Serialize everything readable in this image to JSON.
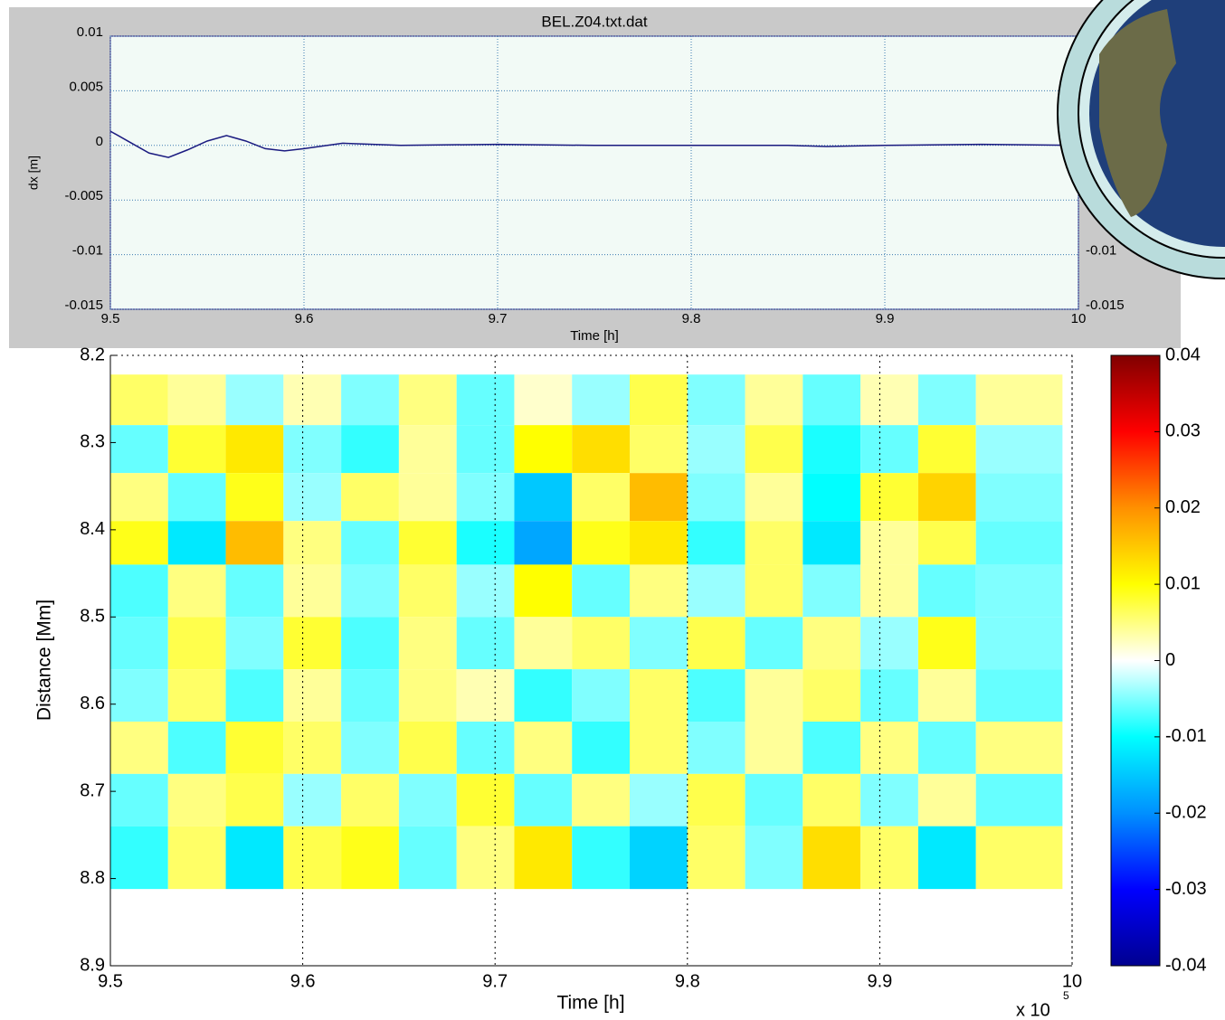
{
  "chart_data": [
    {
      "type": "line",
      "title": "BEL.Z04.txt.dat",
      "xlabel": "Time [h]",
      "ylabel": "dx [m]",
      "x": [
        9.5,
        9.51,
        9.52,
        9.53,
        9.54,
        9.55,
        9.56,
        9.57,
        9.58,
        9.59,
        9.6,
        9.62,
        9.65,
        9.7,
        9.75,
        9.8,
        9.85,
        9.87,
        9.9,
        9.95,
        10
      ],
      "series": [
        {
          "color": "#1a1a80",
          "values": [
            0.0013,
            0.0003,
            -0.0007,
            -0.0011,
            -0.0004,
            0.0004,
            0.0009,
            0.0004,
            -0.0003,
            -0.0005,
            -0.0003,
            0.0002,
            0,
            0.0001,
            0,
            0,
            0,
            -0.0001,
            0,
            0.0001,
            0
          ]
        }
      ],
      "xlim": [
        9.5,
        10
      ],
      "xticks": [
        9.5,
        9.6,
        9.7,
        9.8,
        9.9,
        10
      ],
      "ylim": [
        -0.015,
        0.01
      ],
      "yticks": [
        0.01,
        0.005,
        0,
        -0.005,
        -0.01,
        -0.015
      ],
      "grid": true
    },
    {
      "type": "heatmap",
      "xlabel": "Time [h]",
      "ylabel": "Distance [Mm]",
      "x_multiplier": "x 10",
      "x_multiplier_exp": "5",
      "xlim": [
        9.5,
        10
      ],
      "xticks": [
        9.5,
        9.6,
        9.7,
        9.8,
        9.9,
        10
      ],
      "ylim": [
        8.2,
        8.9
      ],
      "y_direction": "reverse",
      "yticks": [
        8.2,
        8.3,
        8.4,
        8.5,
        8.6,
        8.7,
        8.8,
        8.9
      ],
      "xbins": [
        9.5,
        9.53,
        9.56,
        9.59,
        9.62,
        9.65,
        9.68,
        9.71,
        9.74,
        9.77,
        9.8,
        9.83,
        9.86,
        9.89,
        9.92,
        9.95,
        9.995
      ],
      "ybins": [
        8.222,
        8.28,
        8.335,
        8.39,
        8.44,
        8.5,
        8.56,
        8.62,
        8.68,
        8.74,
        8.812
      ],
      "values": [
        [
          0.006,
          0.004,
          -0.004,
          0.003,
          -0.005,
          0.005,
          -0.006,
          0.002,
          -0.004,
          0.007,
          -0.005,
          0.004,
          -0.006,
          0.003,
          -0.005,
          0.004
        ],
        [
          -0.006,
          0.008,
          0.012,
          -0.005,
          -0.008,
          0.004,
          -0.006,
          0.01,
          0.013,
          0.006,
          -0.004,
          0.007,
          -0.009,
          -0.006,
          0.008,
          -0.004
        ],
        [
          0.005,
          -0.006,
          0.009,
          -0.004,
          0.006,
          0.004,
          -0.005,
          -0.015,
          0.006,
          0.016,
          -0.005,
          0.004,
          -0.01,
          0.008,
          0.014,
          -0.005
        ],
        [
          0.009,
          -0.012,
          0.016,
          0.005,
          -0.006,
          0.008,
          -0.009,
          -0.018,
          0.009,
          0.012,
          -0.008,
          0.006,
          -0.012,
          0.004,
          0.007,
          -0.006
        ],
        [
          -0.007,
          0.005,
          -0.006,
          0.004,
          -0.005,
          0.006,
          -0.004,
          0.01,
          -0.006,
          0.005,
          -0.004,
          0.006,
          -0.005,
          0.004,
          -0.006,
          -0.005
        ],
        [
          -0.006,
          0.007,
          -0.005,
          0.008,
          -0.007,
          0.005,
          -0.006,
          0.004,
          0.006,
          -0.005,
          0.007,
          -0.006,
          0.005,
          -0.004,
          0.009,
          -0.005
        ],
        [
          -0.005,
          0.006,
          -0.007,
          0.004,
          -0.006,
          0.005,
          0.003,
          -0.008,
          -0.005,
          0.006,
          -0.007,
          0.004,
          0.006,
          -0.006,
          0.004,
          -0.006
        ],
        [
          0.005,
          -0.007,
          0.008,
          0.006,
          -0.005,
          0.007,
          -0.006,
          0.005,
          -0.008,
          0.006,
          -0.005,
          0.004,
          -0.007,
          0.005,
          -0.006,
          0.005
        ],
        [
          -0.006,
          0.005,
          0.007,
          -0.004,
          0.006,
          -0.005,
          0.008,
          -0.006,
          0.005,
          -0.004,
          0.007,
          -0.006,
          0.006,
          -0.005,
          0.004,
          -0.006
        ],
        [
          -0.008,
          0.006,
          -0.012,
          0.007,
          0.009,
          -0.006,
          0.005,
          0.012,
          -0.008,
          -0.014,
          0.006,
          -0.005,
          0.013,
          0.006,
          -0.012,
          0.006
        ]
      ],
      "clim": [
        -0.04,
        0.04
      ],
      "colorbar_ticks": [
        0.04,
        0.03,
        0.02,
        0.01,
        0,
        -0.01,
        -0.02,
        -0.03,
        -0.04
      ],
      "colormap": [
        "#00008f",
        "#0000ff",
        "#0090ff",
        "#00ffff",
        "#ffffff",
        "#ffff00",
        "#ff9000",
        "#ff0000",
        "#800000"
      ]
    }
  ]
}
